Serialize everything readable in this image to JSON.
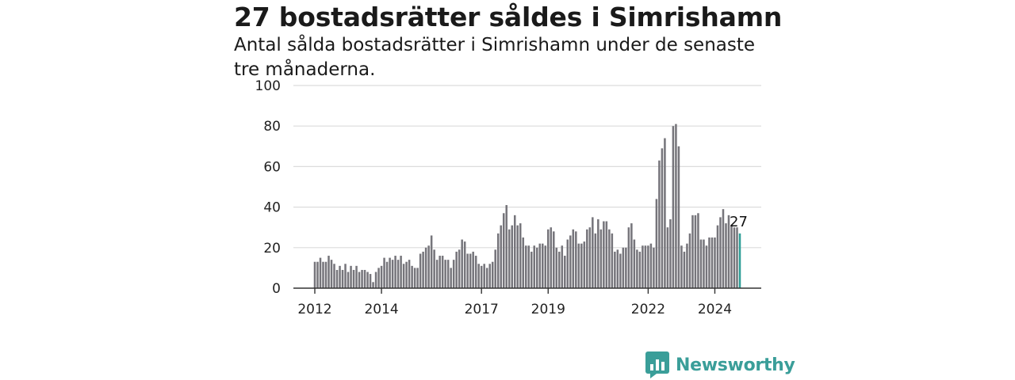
{
  "header": {
    "title": "27 bostadsrätter såldes i Simrishamn",
    "subtitle": "Antal sålda bostadsrätter i Simrishamn under de senaste tre månaderna."
  },
  "logo": {
    "text": "Newsworthy",
    "icon": "newsworthy-bar-chart-icon",
    "color": "#3a9e99"
  },
  "colors": {
    "bars": "#76757b",
    "highlight": "#2e9e97",
    "grid": "#dcdcdc",
    "axis": "#333333"
  },
  "chart_data": {
    "type": "bar",
    "title": "27 bostadsrätter såldes i Simrishamn",
    "subtitle": "Antal sålda bostadsrätter i Simrishamn under de senaste tre månaderna.",
    "x_start": "2012-01",
    "x_frequency": "monthly",
    "xticks": [
      "2012",
      "2014",
      "2017",
      "2019",
      "2022",
      "2024"
    ],
    "yticks": [
      0,
      20,
      40,
      60,
      80,
      100
    ],
    "ylim": [
      0,
      100
    ],
    "grid": true,
    "end_label": "27",
    "values": [
      13,
      13,
      15,
      13,
      13,
      16,
      14,
      12,
      9,
      11,
      9,
      12,
      8,
      11,
      9,
      11,
      8,
      9,
      9,
      8,
      7,
      3,
      8,
      10,
      11,
      15,
      13,
      15,
      14,
      16,
      14,
      16,
      12,
      13,
      14,
      11,
      10,
      10,
      17,
      18,
      20,
      21,
      26,
      19,
      14,
      16,
      16,
      14,
      14,
      10,
      14,
      18,
      19,
      24,
      23,
      17,
      17,
      18,
      16,
      12,
      11,
      12,
      10,
      12,
      13,
      19,
      27,
      31,
      37,
      41,
      29,
      31,
      36,
      31,
      32,
      25,
      21,
      21,
      18,
      21,
      20,
      22,
      22,
      21,
      29,
      30,
      28,
      20,
      18,
      21,
      16,
      24,
      26,
      29,
      28,
      22,
      22,
      23,
      29,
      30,
      35,
      27,
      34,
      29,
      33,
      33,
      29,
      27,
      18,
      19,
      17,
      20,
      20,
      30,
      32,
      24,
      19,
      18,
      21,
      21,
      21,
      22,
      20,
      44,
      63,
      69,
      74,
      30,
      34,
      80,
      81,
      70,
      21,
      18,
      22,
      27,
      36,
      36,
      37,
      24,
      24,
      21,
      25,
      25,
      25,
      31,
      35,
      39,
      32,
      36,
      31,
      30,
      30,
      27
    ]
  }
}
